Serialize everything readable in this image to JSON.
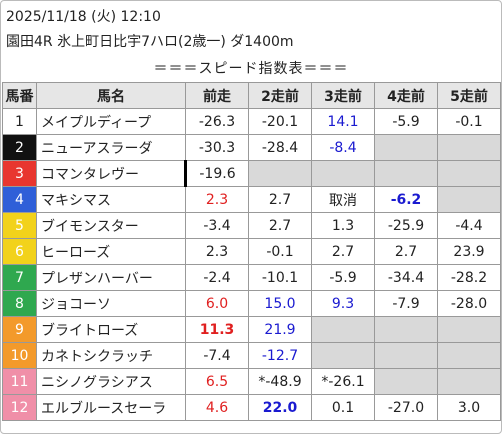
{
  "header": {
    "datetime": "2025/11/18 (火) 12:10",
    "race": "園田4R 氷上町日比宇7ハロ(2歳一) ダ1400m",
    "title": "＝＝＝スピード指数表＝＝＝"
  },
  "table": {
    "columns": [
      "馬番",
      "馬名",
      "前走",
      "2走前",
      "3走前",
      "4走前",
      "5走前"
    ],
    "rows": [
      [
        "1",
        "メイプルディープ",
        "-26.3",
        "-20.1",
        "14.1",
        "-5.9",
        "-0.1"
      ],
      [
        "2",
        "ニューアスラーダ",
        "-30.3",
        "-28.4",
        "-8.4",
        null,
        null
      ],
      [
        "3",
        "コマンタレヴー",
        "-19.6",
        null,
        null,
        null,
        null
      ],
      [
        "4",
        "マキシマス",
        "2.3",
        "2.7",
        "取消",
        "-6.2",
        null
      ],
      [
        "5",
        "ブイモンスター",
        "-3.4",
        "2.7",
        "1.3",
        "-25.9",
        "-4.4"
      ],
      [
        "6",
        "ヒーローズ",
        "2.3",
        "-0.1",
        "2.7",
        "2.7",
        "23.9"
      ],
      [
        "7",
        "プレザンハーバー",
        "-2.4",
        "-10.1",
        "-5.9",
        "-34.4",
        "-28.2"
      ],
      [
        "8",
        "ジョコーソ",
        "6.0",
        "15.0",
        "9.3",
        "-7.9",
        "-28.0"
      ],
      [
        "9",
        "ブライトローズ",
        "11.3",
        "21.9",
        null,
        null,
        null
      ],
      [
        "10",
        "カネトシクラッチ",
        "-7.4",
        "-12.7",
        null,
        null,
        null
      ],
      [
        "11",
        "ニシノグラシアス",
        "6.5",
        "*-48.9",
        "*-26.1",
        null,
        null
      ],
      [
        "12",
        "エルブルースセーラ",
        "4.6",
        "22.0",
        "0.1",
        "-27.0",
        "3.0"
      ]
    ]
  }
}
